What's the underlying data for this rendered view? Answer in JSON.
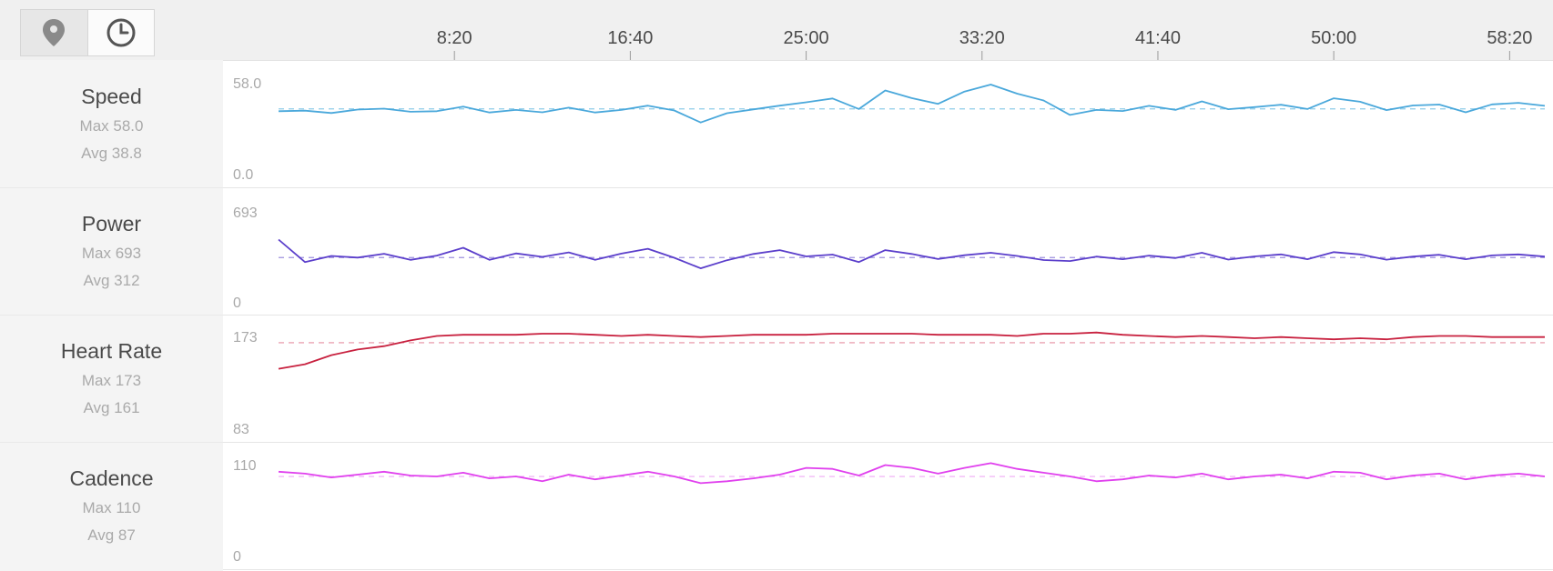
{
  "toolbar": {
    "buttons": [
      {
        "icon": "location-pin-icon",
        "active": false
      },
      {
        "icon": "clock-icon",
        "active": true
      }
    ]
  },
  "metrics": [
    {
      "name": "Speed",
      "max_label": "Max 58.0",
      "avg_label": "Avg 38.8"
    },
    {
      "name": "Power",
      "max_label": "Max 693",
      "avg_label": "Avg 312"
    },
    {
      "name": "Heart Rate",
      "max_label": "Max 173",
      "avg_label": "Avg 161"
    },
    {
      "name": "Cadence",
      "max_label": "Max 110",
      "avg_label": "Avg 87"
    }
  ],
  "chart_data": {
    "type": "line",
    "x_unit": "elapsed time (mm:ss)",
    "x_tick_labels": [
      "8:20",
      "16:40",
      "25:00",
      "33:20",
      "41:40",
      "50:00",
      "58:20"
    ],
    "x_tick_seconds": [
      500,
      1000,
      1500,
      2000,
      2500,
      3000,
      3500
    ],
    "xlim": [
      0,
      3600
    ],
    "grid": false,
    "series": [
      {
        "name": "Speed",
        "color": "#4aa8db",
        "avg_color": "#8ecbe9",
        "ymin_label": "0.0",
        "ymax_label": "58.0",
        "ylim": [
          0,
          58
        ],
        "avg": 38.8,
        "x": [
          0,
          75,
          150,
          225,
          300,
          375,
          450,
          525,
          600,
          675,
          750,
          825,
          900,
          975,
          1050,
          1125,
          1200,
          1275,
          1350,
          1425,
          1500,
          1575,
          1650,
          1725,
          1800,
          1875,
          1950,
          2025,
          2100,
          2175,
          2250,
          2325,
          2400,
          2475,
          2550,
          2625,
          2700,
          2775,
          2850,
          2925,
          3000,
          3075,
          3150,
          3225,
          3300,
          3375,
          3450,
          3525,
          3600
        ],
        "values": [
          37.5,
          37.8,
          36.5,
          38.4,
          38.9,
          37.2,
          37.5,
          40.1,
          36.8,
          38.2,
          36.9,
          39.5,
          36.8,
          38.2,
          40.6,
          37.9,
          31.2,
          36.4,
          38.5,
          40.6,
          42.5,
          44.6,
          38.7,
          49.1,
          44.8,
          41.6,
          48.5,
          52.4,
          47.3,
          43.5,
          35.4,
          38.2,
          37.6,
          40.5,
          38.2,
          43.0,
          38.6,
          39.8,
          41.1,
          38.7,
          44.7,
          42.8,
          38.1,
          40.7,
          41.2,
          36.9,
          41.3,
          42.2,
          40.5
        ]
      },
      {
        "name": "Power",
        "color": "#5b3fcb",
        "avg_color": "#9e90de",
        "ymin_label": "0",
        "ymax_label": "693",
        "ylim": [
          0,
          693
        ],
        "avg": 312,
        "x": [
          0,
          75,
          150,
          225,
          300,
          375,
          450,
          525,
          600,
          675,
          750,
          825,
          900,
          975,
          1050,
          1125,
          1200,
          1275,
          1350,
          1425,
          1500,
          1575,
          1650,
          1725,
          1800,
          1875,
          1950,
          2025,
          2100,
          2175,
          2250,
          2325,
          2400,
          2475,
          2550,
          2625,
          2700,
          2775,
          2850,
          2925,
          3000,
          3075,
          3150,
          3225,
          3300,
          3375,
          3450,
          3525,
          3600
        ],
        "values": [
          421,
          285,
          322,
          312,
          335,
          298,
          324,
          371,
          298,
          337,
          316,
          343,
          298,
          336,
          365,
          311,
          247,
          296,
          334,
          357,
          319,
          330,
          285,
          357,
          334,
          303,
          326,
          341,
          322,
          297,
          291,
          318,
          302,
          324,
          309,
          341,
          300,
          319,
          331,
          302,
          345,
          331,
          299,
          318,
          329,
          302,
          325,
          331,
          318
        ]
      },
      {
        "name": "Heart Rate",
        "color": "#c8213f",
        "avg_color": "#e58ea0",
        "ymin_label": "83",
        "ymax_label": "173",
        "ylim": [
          83,
          173
        ],
        "avg": 161,
        "x": [
          0,
          75,
          150,
          225,
          300,
          375,
          450,
          525,
          600,
          675,
          750,
          825,
          900,
          975,
          1050,
          1125,
          1200,
          1275,
          1350,
          1425,
          1500,
          1575,
          1650,
          1725,
          1800,
          1875,
          1950,
          2025,
          2100,
          2175,
          2250,
          2325,
          2400,
          2475,
          2550,
          2625,
          2700,
          2775,
          2850,
          2925,
          3000,
          3075,
          3150,
          3225,
          3300,
          3375,
          3450,
          3525,
          3600
        ],
        "values": [
          138,
          142,
          150,
          155,
          158,
          163,
          167,
          168,
          168,
          168,
          169,
          169,
          168,
          167,
          168,
          167,
          166,
          167,
          168,
          168,
          168,
          169,
          169,
          169,
          169,
          168,
          168,
          168,
          167,
          169,
          169,
          170,
          168,
          167,
          166,
          167,
          166,
          165,
          166,
          165,
          164,
          165,
          164,
          166,
          167,
          167,
          166,
          166,
          166
        ]
      },
      {
        "name": "Cadence",
        "color": "#e040ee",
        "avg_color": "#efaaf4",
        "ymin_label": "0",
        "ymax_label": "110",
        "ylim": [
          0,
          110
        ],
        "avg": 87,
        "x": [
          0,
          75,
          150,
          225,
          300,
          375,
          450,
          525,
          600,
          675,
          750,
          825,
          900,
          975,
          1050,
          1125,
          1200,
          1275,
          1350,
          1425,
          1500,
          1575,
          1650,
          1725,
          1800,
          1875,
          1950,
          2025,
          2100,
          2175,
          2250,
          2325,
          2400,
          2475,
          2550,
          2625,
          2700,
          2775,
          2850,
          2925,
          3000,
          3075,
          3150,
          3225,
          3300,
          3375,
          3450,
          3525,
          3600
        ],
        "values": [
          92,
          90,
          86,
          89,
          92,
          88,
          87,
          91,
          85,
          87,
          82,
          89,
          84,
          88,
          92,
          87,
          80,
          82,
          85,
          89,
          96,
          95,
          88,
          99,
          96,
          90,
          96,
          101,
          95,
          91,
          87,
          82,
          84,
          88,
          86,
          90,
          84,
          87,
          89,
          85,
          92,
          91,
          84,
          88,
          90,
          84,
          88,
          90,
          87
        ]
      }
    ]
  }
}
